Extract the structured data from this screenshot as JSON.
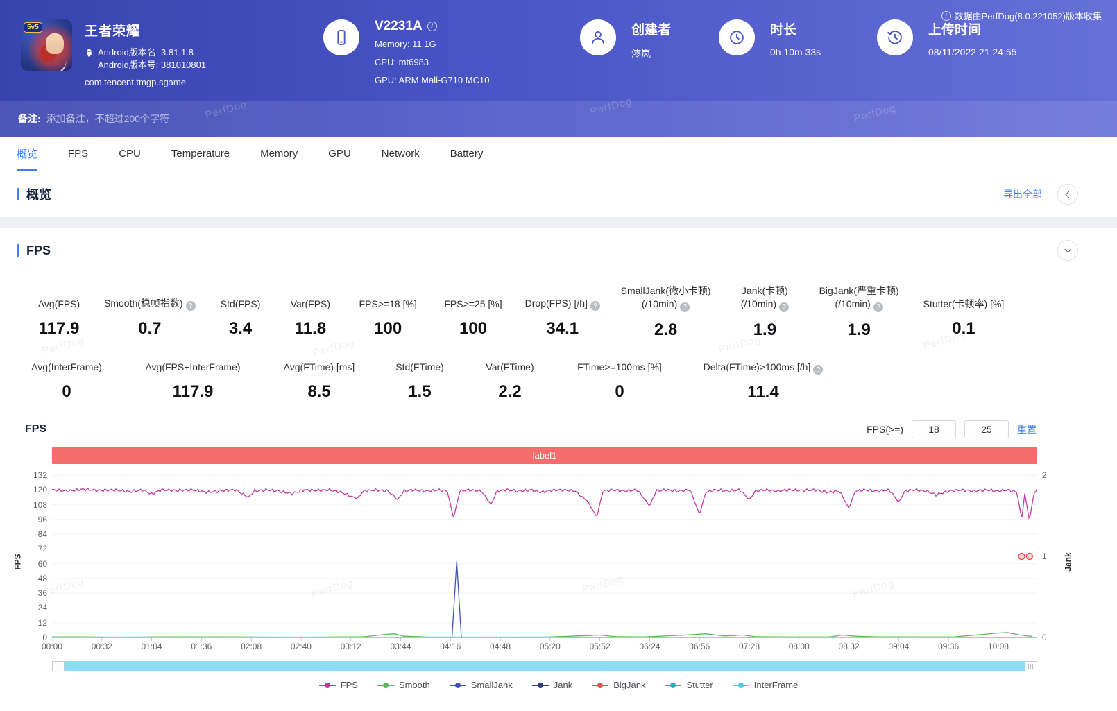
{
  "watermark": "PerfDog",
  "header": {
    "collect_note": "数据由PerfDog(8.0.221052)版本收集",
    "game": {
      "title": "王者荣耀",
      "icon_badge": "5v5",
      "version_name": "Android版本名: 3.81.1.8",
      "version_code": "Android版本号: 381010801",
      "package": "com.tencent.tmgp.sgame"
    },
    "device": {
      "model": "V2231A",
      "memory": "Memory: 11.1G",
      "cpu": "CPU: mt6983",
      "gpu": "GPU: ARM Mali-G710 MC10"
    },
    "creator": {
      "label": "创建者",
      "value": "澪岚"
    },
    "duration": {
      "label": "时长",
      "value": "0h 10m 33s"
    },
    "upload": {
      "label": "上传时间",
      "value": "08/11/2022 21:24:55"
    },
    "remark_label": "备注:",
    "remark_placeholder": "添加备注，不超过200个字符"
  },
  "tabs": [
    {
      "label": "概览",
      "active": true
    },
    {
      "label": "FPS",
      "active": false
    },
    {
      "label": "CPU",
      "active": false
    },
    {
      "label": "Temperature",
      "active": false
    },
    {
      "label": "Memory",
      "active": false
    },
    {
      "label": "GPU",
      "active": false
    },
    {
      "label": "Network",
      "active": false
    },
    {
      "label": "Battery",
      "active": false
    }
  ],
  "overview": {
    "title": "概览",
    "export_all": "导出全部"
  },
  "fps_section": {
    "title": "FPS",
    "chart_title": "FPS",
    "threshold_label": "FPS(>=)",
    "threshold_low": "18",
    "threshold_high": "25",
    "reset_label": "重置",
    "banner_label": "label1",
    "metrics_row1": [
      {
        "key": "avg-fps",
        "label": "Avg(FPS)",
        "value": "117.9"
      },
      {
        "key": "smooth",
        "label": "Smooth(稳帧指数)",
        "help": true,
        "value": "0.7"
      },
      {
        "key": "std-fps",
        "label": "Std(FPS)",
        "value": "3.4"
      },
      {
        "key": "var-fps",
        "label": "Var(FPS)",
        "value": "11.8"
      },
      {
        "key": "fps-ge-18",
        "label": "FPS>=18 [%]",
        "value": "100"
      },
      {
        "key": "fps-ge-25",
        "label": "FPS>=25 [%]",
        "value": "100"
      },
      {
        "key": "drop-fps",
        "label": "Drop(FPS) [/h]",
        "help": true,
        "value": "34.1"
      },
      {
        "key": "smalljank",
        "label": "SmallJank(微小卡顿)",
        "label2": "(/10min)",
        "help": true,
        "value": "2.8"
      },
      {
        "key": "jank",
        "label": "Jank(卡顿)",
        "label2": "(/10min)",
        "help": true,
        "value": "1.9"
      },
      {
        "key": "bigjank",
        "label": "BigJank(严重卡顿)",
        "label2": "(/10min)",
        "help": true,
        "value": "1.9"
      },
      {
        "key": "stutter",
        "label": "Stutter(卡顿率) [%]",
        "value": "0.1"
      }
    ],
    "metrics_row2": [
      {
        "key": "avg-interframe",
        "label": "Avg(InterFrame)",
        "value": "0"
      },
      {
        "key": "avg-fps-interframe",
        "label": "Avg(FPS+InterFrame)",
        "value": "117.9"
      },
      {
        "key": "avg-ftime",
        "label": "Avg(FTime) [ms]",
        "value": "8.5"
      },
      {
        "key": "std-ftime",
        "label": "Std(FTime)",
        "value": "1.5"
      },
      {
        "key": "var-ftime",
        "label": "Var(FTime)",
        "value": "2.2"
      },
      {
        "key": "ftime-ge-100",
        "label": "FTime>=100ms [%]",
        "value": "0"
      },
      {
        "key": "delta-ftime",
        "label": "Delta(FTime)>100ms [/h]",
        "help": true,
        "value": "11.4"
      }
    ]
  },
  "chart_data": {
    "type": "line",
    "title": "FPS",
    "x_ticks": [
      "00:00",
      "00:32",
      "01:04",
      "01:36",
      "02:08",
      "02:40",
      "03:12",
      "03:44",
      "04:16",
      "04:48",
      "05:20",
      "05:52",
      "06:24",
      "06:56",
      "07:28",
      "08:00",
      "08:32",
      "09:04",
      "09:36",
      "10:08"
    ],
    "x_max_seconds": 633,
    "y_left": {
      "label": "FPS",
      "min": 0,
      "max": 132,
      "step": 12
    },
    "y_right": {
      "label": "Jank",
      "min": 0,
      "max": 2,
      "step": 1
    },
    "legend": [
      "FPS",
      "Smooth",
      "SmallJank",
      "Jank",
      "BigJank",
      "Stutter",
      "InterFrame"
    ],
    "series": [
      {
        "name": "FPS",
        "color": "#c03a9f",
        "axis": "left",
        "kind": "noisy-line",
        "points": [
          [
            0,
            120
          ],
          [
            10,
            119
          ],
          [
            20,
            120.5
          ],
          [
            30,
            119.5
          ],
          [
            40,
            120
          ],
          [
            50,
            118.5
          ],
          [
            58,
            120
          ],
          [
            64,
            116.5
          ],
          [
            70,
            120
          ],
          [
            80,
            119.5
          ],
          [
            90,
            120
          ],
          [
            100,
            118
          ],
          [
            110,
            119.5
          ],
          [
            118,
            120
          ],
          [
            126,
            114
          ],
          [
            130,
            119
          ],
          [
            138,
            120
          ],
          [
            146,
            119
          ],
          [
            154,
            117
          ],
          [
            162,
            120
          ],
          [
            170,
            119.5
          ],
          [
            178,
            120
          ],
          [
            186,
            118
          ],
          [
            196,
            113
          ],
          [
            200,
            119
          ],
          [
            208,
            120
          ],
          [
            216,
            119
          ],
          [
            222,
            112
          ],
          [
            226,
            119
          ],
          [
            232,
            120
          ],
          [
            240,
            119
          ],
          [
            248,
            120
          ],
          [
            254,
            119
          ],
          [
            258,
            97
          ],
          [
            262,
            119
          ],
          [
            268,
            120
          ],
          [
            276,
            119
          ],
          [
            282,
            108
          ],
          [
            286,
            119
          ],
          [
            292,
            120
          ],
          [
            300,
            119
          ],
          [
            308,
            120
          ],
          [
            314,
            118
          ],
          [
            320,
            119.5
          ],
          [
            328,
            120
          ],
          [
            336,
            119
          ],
          [
            344,
            111
          ],
          [
            350,
            98
          ],
          [
            354,
            119
          ],
          [
            360,
            120
          ],
          [
            368,
            119
          ],
          [
            376,
            120
          ],
          [
            384,
            107
          ],
          [
            388,
            119
          ],
          [
            394,
            120
          ],
          [
            402,
            119
          ],
          [
            410,
            120
          ],
          [
            416,
            100
          ],
          [
            420,
            118
          ],
          [
            426,
            120
          ],
          [
            434,
            119
          ],
          [
            442,
            120
          ],
          [
            448,
            112
          ],
          [
            452,
            119
          ],
          [
            458,
            120
          ],
          [
            466,
            119
          ],
          [
            474,
            120
          ],
          [
            482,
            119.5
          ],
          [
            490,
            120
          ],
          [
            498,
            118
          ],
          [
            506,
            119
          ],
          [
            512,
            105
          ],
          [
            516,
            119
          ],
          [
            522,
            120
          ],
          [
            530,
            119
          ],
          [
            538,
            120
          ],
          [
            544,
            110
          ],
          [
            548,
            119
          ],
          [
            554,
            120
          ],
          [
            562,
            119
          ],
          [
            568,
            116
          ],
          [
            576,
            119
          ],
          [
            584,
            120
          ],
          [
            592,
            119
          ],
          [
            600,
            120
          ],
          [
            608,
            119
          ],
          [
            614,
            120
          ],
          [
            620,
            118
          ],
          [
            623,
            96
          ],
          [
            625,
            117
          ],
          [
            628,
            95
          ],
          [
            631,
            118
          ],
          [
            633,
            120
          ]
        ]
      },
      {
        "name": "Smooth",
        "color": "#57b75b",
        "axis": "left",
        "kind": "line",
        "points": [
          [
            0,
            0.5
          ],
          [
            40,
            0.3
          ],
          [
            80,
            0.5
          ],
          [
            120,
            0.4
          ],
          [
            160,
            0.3
          ],
          [
            200,
            0.5
          ],
          [
            214,
            2.5
          ],
          [
            220,
            3
          ],
          [
            226,
            1
          ],
          [
            240,
            0.4
          ],
          [
            280,
            0.3
          ],
          [
            320,
            0.4
          ],
          [
            344,
            1.5
          ],
          [
            352,
            2
          ],
          [
            362,
            0.6
          ],
          [
            380,
            0.4
          ],
          [
            410,
            2.2
          ],
          [
            420,
            3
          ],
          [
            432,
            1.2
          ],
          [
            444,
            2
          ],
          [
            452,
            0.6
          ],
          [
            470,
            0.4
          ],
          [
            500,
            0.5
          ],
          [
            508,
            2
          ],
          [
            516,
            1
          ],
          [
            530,
            0.5
          ],
          [
            556,
            0.4
          ],
          [
            580,
            0.5
          ],
          [
            598,
            2.5
          ],
          [
            606,
            3.5
          ],
          [
            614,
            4
          ],
          [
            622,
            2
          ],
          [
            630,
            0.8
          ]
        ]
      },
      {
        "name": "SmallJank",
        "color": "#4053b4",
        "axis": "left",
        "kind": "line",
        "points": [
          [
            257,
            0
          ],
          [
            260,
            62
          ],
          [
            263,
            0
          ]
        ]
      },
      {
        "name": "Jank",
        "color": "#2b3a8c",
        "axis": "right",
        "kind": "line",
        "points": []
      },
      {
        "name": "BigJank",
        "color": "#e85454",
        "axis": "right",
        "kind": "marker",
        "points": [
          [
            623,
            1
          ],
          [
            628,
            1
          ]
        ]
      },
      {
        "name": "Stutter",
        "color": "#27b3b3",
        "axis": "left",
        "kind": "line",
        "points": [
          [
            0,
            0
          ],
          [
            633,
            0
          ]
        ]
      },
      {
        "name": "InterFrame",
        "color": "#53c6ec",
        "axis": "left",
        "kind": "line",
        "points": [
          [
            0,
            0.15
          ],
          [
            633,
            0.15
          ]
        ]
      }
    ]
  }
}
